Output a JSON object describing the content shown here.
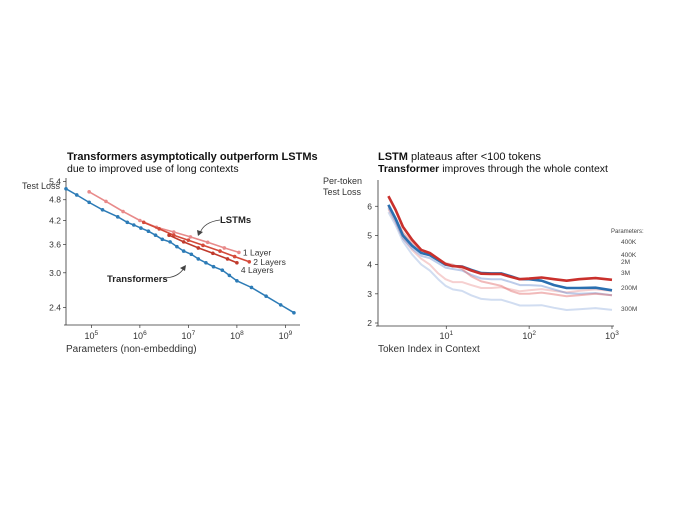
{
  "colors": {
    "transformer": "#2c7bb6",
    "lstm_dark": "#c0392b",
    "lstm_mid": "#d44a3a",
    "lstm_light": "#e88a8a",
    "axis": "#333333",
    "text": "#222222"
  },
  "chart_data": [
    {
      "type": "line",
      "title": "Transformers asymptotically outperform LSTMs",
      "subtitle": "due to improved use of long contexts",
      "xlabel": "Parameters (non-embedding)",
      "ylabel": "Test Loss",
      "xscale": "log",
      "yscale": "log",
      "xlim": [
        30000,
        2000000000
      ],
      "ylim": [
        2.2,
        5.45
      ],
      "xticks": [
        100000,
        1000000,
        10000000,
        100000000,
        1000000000
      ],
      "xtick_labels": [
        {
          "base": "10",
          "exp": "5"
        },
        {
          "base": "10",
          "exp": "6"
        },
        {
          "base": "10",
          "exp": "7"
        },
        {
          "base": "10",
          "exp": "8"
        },
        {
          "base": "10",
          "exp": "9"
        }
      ],
      "yticks": [
        2.4,
        3.0,
        3.6,
        4.2,
        4.8,
        5.4
      ],
      "ytick_labels": [
        "2.4",
        "3.0",
        "3.6",
        "4.2",
        "4.8",
        "5.4"
      ],
      "annotations": {
        "lstm_label": "LSTMs",
        "transformer_label": "Transformers"
      },
      "series": [
        {
          "name": "Transformers",
          "color": "transformer",
          "x": [
            30000,
            50000,
            90000,
            170000,
            350000,
            550000,
            750000,
            1050000,
            1500000,
            2100000,
            2900000,
            4200000,
            5800000,
            8000000,
            11500000,
            16000000,
            23000000,
            33000000,
            50000000,
            70000000,
            100000000,
            200000000,
            400000000,
            800000000,
            1500000000
          ],
          "y": [
            5.15,
            4.95,
            4.72,
            4.5,
            4.3,
            4.15,
            4.08,
            4.0,
            3.92,
            3.82,
            3.72,
            3.66,
            3.55,
            3.45,
            3.38,
            3.28,
            3.2,
            3.12,
            3.05,
            2.95,
            2.85,
            2.73,
            2.58,
            2.44,
            2.32
          ]
        },
        {
          "name": "1 Layer",
          "color": "lstm_light",
          "x": [
            90000,
            200000,
            450000,
            1000000,
            2200000,
            5000000,
            11000000,
            25000000,
            55000000,
            110000000
          ],
          "y": [
            5.05,
            4.75,
            4.45,
            4.2,
            4.02,
            3.9,
            3.78,
            3.65,
            3.52,
            3.42
          ]
        },
        {
          "name": "2 Layers",
          "color": "lstm_mid",
          "x": [
            1200000,
            2500000,
            5000000,
            10000000,
            20000000,
            45000000,
            90000000,
            180000000
          ],
          "y": [
            4.15,
            3.98,
            3.82,
            3.7,
            3.58,
            3.45,
            3.33,
            3.22
          ]
        },
        {
          "name": "4 Layers",
          "color": "lstm_dark",
          "x": [
            4000000,
            8000000,
            16000000,
            32000000,
            64000000,
            100000000
          ],
          "y": [
            3.82,
            3.66,
            3.52,
            3.4,
            3.28,
            3.2
          ]
        }
      ]
    },
    {
      "type": "line",
      "title_bold": "LSTM",
      "title_rest": " plateaus after <100 tokens",
      "subtitle_bold": "Transformer",
      "subtitle_rest": " improves through the whole context",
      "xlabel": "Token Index in Context",
      "ylabel_line1": "Per-token",
      "ylabel_line2": "Test Loss",
      "xscale": "log",
      "xlim": [
        1.5,
        1000
      ],
      "ylim": [
        2,
        6.9
      ],
      "xticks": [
        10,
        100,
        1000
      ],
      "xtick_labels": [
        {
          "base": "10",
          "exp": "1"
        },
        {
          "base": "10",
          "exp": "2"
        },
        {
          "base": "10",
          "exp": "3"
        }
      ],
      "yticks": [
        2,
        3,
        4,
        5,
        6
      ],
      "ytick_labels": [
        "2",
        "3",
        "4",
        "5",
        "6"
      ],
      "legend_title": "Parameters:",
      "series": [
        {
          "name": "400K",
          "model": "LSTM",
          "color": "#c9302c",
          "opacity": 1.0,
          "width": 2.6,
          "x": [
            2,
            3,
            5,
            8,
            12,
            20,
            35,
            60,
            100,
            200,
            400,
            1000
          ],
          "y": [
            6.35,
            5.3,
            4.5,
            4.2,
            3.95,
            3.8,
            3.68,
            3.58,
            3.52,
            3.5,
            3.5,
            3.48
          ]
        },
        {
          "name": "400K",
          "model": "Transformer",
          "color": "#2a6fb0",
          "opacity": 1.0,
          "width": 2.6,
          "x": [
            2,
            3,
            5,
            8,
            12,
            20,
            35,
            60,
            100,
            200,
            400,
            1000
          ],
          "y": [
            6.05,
            5.0,
            4.4,
            4.15,
            3.95,
            3.82,
            3.7,
            3.6,
            3.5,
            3.3,
            3.2,
            3.12
          ]
        },
        {
          "name": "2M",
          "model": "LSTM",
          "color": "#e06666",
          "opacity": 0.45,
          "width": 2.0,
          "x": [
            2,
            3,
            5,
            8,
            12,
            20,
            35,
            60,
            100,
            200,
            400,
            1000
          ],
          "y": [
            6.0,
            5.1,
            4.5,
            4.2,
            4.0,
            3.6,
            3.35,
            3.1,
            3.0,
            2.98,
            2.95,
            2.95
          ]
        },
        {
          "name": "3M",
          "model": "Transformer",
          "color": "#6a8fd0",
          "opacity": 0.45,
          "width": 2.0,
          "x": [
            2,
            3,
            5,
            8,
            12,
            20,
            35,
            60,
            100,
            200,
            400,
            1000
          ],
          "y": [
            5.95,
            4.9,
            4.3,
            4.05,
            3.85,
            3.65,
            3.5,
            3.4,
            3.3,
            3.15,
            3.0,
            2.95
          ]
        },
        {
          "name": "200M",
          "model": "LSTM",
          "color": "#e88a8a",
          "opacity": 0.4,
          "width": 2.0,
          "x": [
            2,
            3,
            5,
            8,
            12,
            20,
            35,
            60,
            100,
            200,
            400,
            1000
          ],
          "y": [
            5.9,
            4.9,
            4.2,
            3.7,
            3.4,
            3.3,
            3.2,
            3.15,
            3.12,
            3.1,
            3.1,
            3.1
          ]
        },
        {
          "name": "300M",
          "model": "Transformer",
          "color": "#9ab4e0",
          "opacity": 0.45,
          "width": 2.0,
          "x": [
            2,
            3,
            5,
            8,
            12,
            20,
            35,
            60,
            100,
            200,
            400,
            1000
          ],
          "y": [
            5.8,
            4.8,
            4.0,
            3.5,
            3.15,
            2.95,
            2.8,
            2.7,
            2.6,
            2.52,
            2.47,
            2.45
          ]
        }
      ],
      "end_labels": [
        "400K",
        "400K",
        "2M",
        "3M",
        "200M",
        "300M"
      ]
    }
  ]
}
